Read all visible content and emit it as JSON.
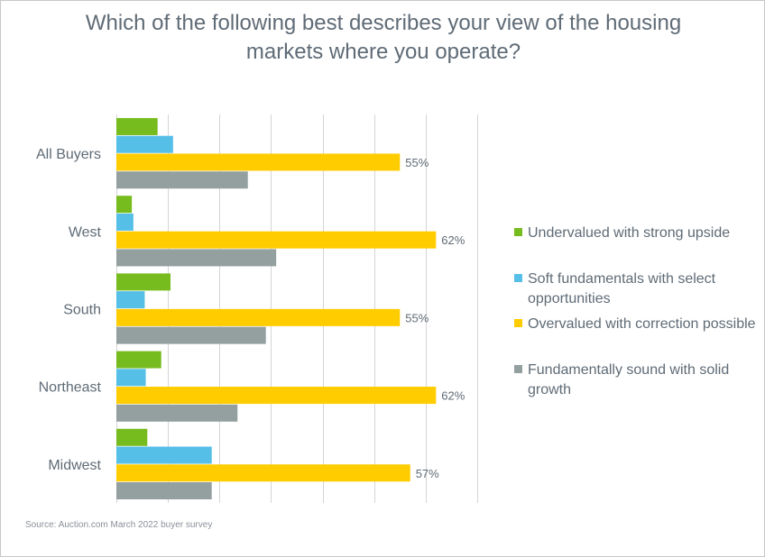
{
  "chart_data": {
    "type": "bar",
    "orientation": "horizontal",
    "title": "Which of the following best describes your view of the housing markets where you operate?",
    "categories": [
      "All Buyers",
      "West",
      "South",
      "Northeast",
      "Midwest"
    ],
    "series": [
      {
        "name": "Undervalued with strong upside",
        "color": "#77bc1f",
        "values": [
          8,
          3,
          10.5,
          8.7,
          6
        ]
      },
      {
        "name": "Soft fundamentals with select opportunities",
        "color": "#55bfe8",
        "values": [
          11,
          3.3,
          5.5,
          5.7,
          18.5
        ]
      },
      {
        "name": "Overvalued with correction possible",
        "color": "#ffcc00",
        "values": [
          55,
          62,
          55,
          62,
          57
        ],
        "data_labels": [
          "55%",
          "62%",
          "55%",
          "62%",
          "57%"
        ]
      },
      {
        "name": "Fundamentally sound with solid growth",
        "color": "#949fa0",
        "values": [
          25.5,
          31,
          29,
          23.5,
          18.5
        ]
      }
    ],
    "xlim": [
      0,
      70
    ],
    "x_gridlines": [
      0,
      10,
      20,
      30,
      40,
      50,
      60,
      70
    ],
    "grid": true,
    "legend_position": "right"
  },
  "source": "Source: Auction.com March 2022 buyer survey"
}
